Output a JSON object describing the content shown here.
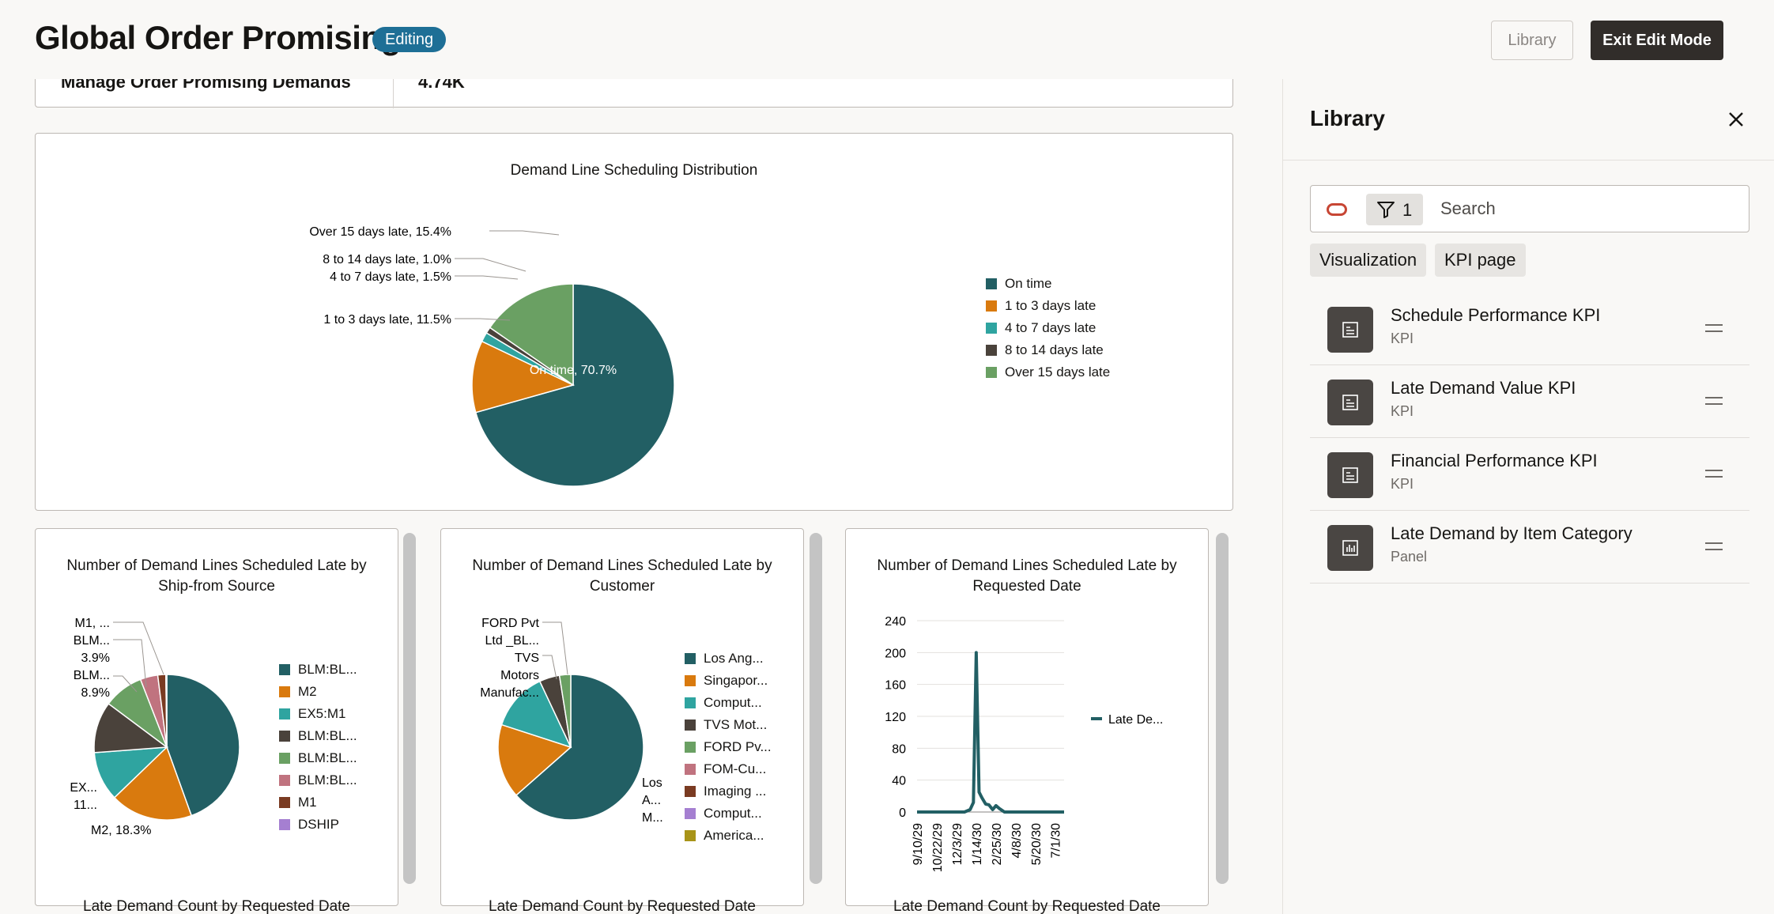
{
  "header": {
    "title": "Global Order Promising",
    "badge": "Editing",
    "library_button": "Library",
    "exit_button": "Exit Edit Mode"
  },
  "kpi_row": {
    "label": "Manage Order Promising Demands",
    "value": "4.74K"
  },
  "charts": {
    "scheduling_distribution": {
      "title": "Demand Line Scheduling Distribution",
      "labels": {
        "over15": "Over 15 days late, 15.4%",
        "d8to14": "8 to 14 days late, 1.0%",
        "d4to7": "4 to 7 days late, 1.5%",
        "d1to3": "1 to 3 days late, 11.5%",
        "ontime": "On time, 70.7%"
      },
      "legend": [
        "On time",
        "1 to 3 days late",
        "4 to 7 days late",
        "8 to 14 days late",
        "Over 15 days late"
      ]
    },
    "by_source": {
      "title": "Number of Demand Lines Scheduled Late by Ship-from Source",
      "labels": {
        "m1": "M1, ...",
        "blm_a": "BLM...",
        "blm_a_pct": "3.9%",
        "blm_b": "BLM...",
        "blm_b_pct": "8.9%",
        "ex": "EX...",
        "ex_pct": "11...",
        "m2": "M2, 18.3%"
      },
      "legend": [
        "BLM:BL...",
        "M2",
        "EX5:M1",
        "BLM:BL...",
        "BLM:BL...",
        "BLM:BL...",
        "M1",
        "DSHIP"
      ]
    },
    "by_customer": {
      "title": "Number of Demand Lines Scheduled Late by Customer",
      "labels": {
        "ford1": "FORD Pvt",
        "ford2": "Ltd _BL...",
        "tvs1": "TVS",
        "tvs2": "Motors",
        "tvs3": "Manufac...",
        "los1": "Los",
        "los2": "A...",
        "los3": "M..."
      },
      "legend": [
        "Los Ang...",
        "Singapor...",
        "Comput...",
        "TVS Mot...",
        "FORD Pv...",
        "FOM-Cu...",
        "Imaging ...",
        "Comput...",
        "America..."
      ]
    },
    "by_date": {
      "title": "Number of Demand Lines Scheduled Late by Requested Date",
      "legend": "Late De..."
    },
    "bottom_labels": [
      "Late Demand Count by Requested Date",
      "Late Demand Count by Requested Date",
      "Late Demand Count by Requested Date"
    ]
  },
  "chart_data": [
    {
      "type": "pie",
      "title": "Demand Line Scheduling Distribution",
      "categories": [
        "On time",
        "1 to 3 days late",
        "4 to 7 days late",
        "8 to 14 days late",
        "Over 15 days late"
      ],
      "values": [
        70.7,
        11.5,
        1.5,
        1.0,
        15.4
      ],
      "colors": [
        "#225f64",
        "#d97a0e",
        "#2fa4a0",
        "#4a423b",
        "#6aa063"
      ],
      "legend": "right"
    },
    {
      "type": "pie",
      "title": "Number of Demand Lines Scheduled Late by Ship-from Source",
      "categories": [
        "BLM:BL...",
        "M2",
        "EX5:M1",
        "BLM:BL...",
        "BLM:BL...",
        "BLM:BL...",
        "M1",
        "DSHIP"
      ],
      "values": [
        44.5,
        18.3,
        11.0,
        11.4,
        8.9,
        3.9,
        1.8,
        0.2
      ],
      "colors": [
        "#225f64",
        "#d97a0e",
        "#2fa4a0",
        "#4a423b",
        "#6aa063",
        "#c0737f",
        "#7a3b22",
        "#a57fd1"
      ],
      "legend": "right"
    },
    {
      "type": "pie",
      "title": "Number of Demand Lines Scheduled Late by Customer",
      "categories": [
        "Los Ang...",
        "Singapor...",
        "Comput...",
        "TVS Mot...",
        "FORD Pv...",
        "FOM-Cu...",
        "Imaging ...",
        "Comput...",
        "America..."
      ],
      "values": [
        63.5,
        16.5,
        13.0,
        4.5,
        2.5,
        0,
        0,
        0,
        0
      ],
      "colors": [
        "#225f64",
        "#d97a0e",
        "#2fa4a0",
        "#4a423b",
        "#6aa063",
        "#c0737f",
        "#7a3b22",
        "#a57fd1",
        "#a89418"
      ],
      "legend": "right"
    },
    {
      "type": "line",
      "title": "Number of Demand Lines Scheduled Late by Requested Date",
      "x_ticks": [
        "9/10/29",
        "10/22/29",
        "12/3/29",
        "1/14/30",
        "2/25/30",
        "4/8/30",
        "5/20/30",
        "7/1/30"
      ],
      "y_ticks": [
        0,
        40,
        80,
        120,
        160,
        200,
        240
      ],
      "ylim": [
        0,
        240
      ],
      "series": [
        {
          "name": "Late De...",
          "color": "#225f64",
          "x": [
            "9/10/29",
            "10/15/29",
            "11/20/29",
            "12/20/29",
            "1/1/30",
            "1/8/30",
            "1/14/30",
            "1/20/30",
            "1/26/30",
            "2/3/30",
            "2/10/30",
            "2/18/30",
            "2/25/30",
            "3/5/30",
            "3/15/30",
            "4/8/30",
            "5/20/30",
            "7/1/30",
            "7/20/30"
          ],
          "values": [
            0,
            0,
            0,
            0,
            3,
            12,
            200,
            25,
            18,
            10,
            9,
            3,
            8,
            4,
            0,
            0,
            0,
            0,
            0
          ]
        }
      ],
      "legend": "right"
    }
  ],
  "sidebar": {
    "title": "Library",
    "filter_count": "1",
    "search_placeholder": "Search",
    "tags": [
      "Visualization",
      "KPI page"
    ],
    "items": [
      {
        "name": "Schedule Performance KPI",
        "type": "KPI",
        "icon": "kpi-icon"
      },
      {
        "name": "Late Demand Value KPI",
        "type": "KPI",
        "icon": "kpi-icon"
      },
      {
        "name": "Financial Performance KPI",
        "type": "KPI",
        "icon": "kpi-icon"
      },
      {
        "name": "Late Demand by Item Category",
        "type": "Panel",
        "icon": "bar-chart-icon"
      }
    ]
  }
}
